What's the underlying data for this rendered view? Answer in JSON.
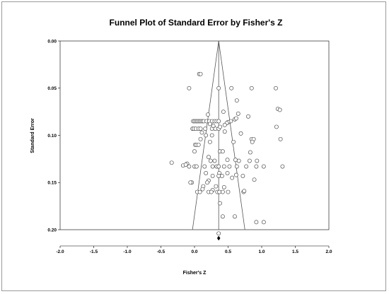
{
  "chart_data": {
    "type": "scatter",
    "title": "Funnel Plot of Standard Error by Fisher's Z",
    "xlabel": "Fisher's Z",
    "ylabel": "Standard Error",
    "xlim": [
      -2.0,
      2.0
    ],
    "ylim": [
      0.0,
      0.2
    ],
    "y_inverted": true,
    "x_ticks": [
      "-2.0",
      "-1.5",
      "-1.0",
      "-0.5",
      "0.0",
      "0.5",
      "1.0",
      "1.5",
      "2.0"
    ],
    "y_ticks": [
      "0.00",
      "0.05",
      "0.10",
      "0.15",
      "0.20"
    ],
    "summary_effect": 0.36,
    "funnel": {
      "apex": [
        0.36,
        0.0
      ],
      "lower_left": [
        -0.03,
        0.2
      ],
      "lower_right": [
        0.75,
        0.2
      ]
    },
    "points": [
      {
        "x": -0.08,
        "y": 0.05
      },
      {
        "x": 0.07,
        "y": 0.035
      },
      {
        "x": 0.09,
        "y": 0.035
      },
      {
        "x": 0.36,
        "y": 0.05
      },
      {
        "x": 0.55,
        "y": 0.05
      },
      {
        "x": 0.85,
        "y": 0.05
      },
      {
        "x": 1.21,
        "y": 0.05
      },
      {
        "x": 0.63,
        "y": 0.063
      },
      {
        "x": 1.24,
        "y": 0.072
      },
      {
        "x": 1.27,
        "y": 0.073
      },
      {
        "x": 0.43,
        "y": 0.075
      },
      {
        "x": 0.2,
        "y": 0.078
      },
      {
        "x": 0.65,
        "y": 0.077
      },
      {
        "x": 0.8,
        "y": 0.08
      },
      {
        "x": -0.02,
        "y": 0.085
      },
      {
        "x": 0.0,
        "y": 0.085
      },
      {
        "x": 0.02,
        "y": 0.085
      },
      {
        "x": 0.04,
        "y": 0.085
      },
      {
        "x": 0.06,
        "y": 0.085
      },
      {
        "x": 0.08,
        "y": 0.085
      },
      {
        "x": 0.1,
        "y": 0.085
      },
      {
        "x": 0.12,
        "y": 0.085
      },
      {
        "x": 0.14,
        "y": 0.085
      },
      {
        "x": 0.18,
        "y": 0.085
      },
      {
        "x": 0.22,
        "y": 0.085
      },
      {
        "x": 0.26,
        "y": 0.085
      },
      {
        "x": 0.3,
        "y": 0.085
      },
      {
        "x": 0.33,
        "y": 0.085
      },
      {
        "x": 0.36,
        "y": 0.085
      },
      {
        "x": 0.6,
        "y": 0.083
      },
      {
        "x": 0.62,
        "y": 0.082
      },
      {
        "x": 0.54,
        "y": 0.085
      },
      {
        "x": 0.5,
        "y": 0.086
      },
      {
        "x": 0.48,
        "y": 0.087
      },
      {
        "x": 0.45,
        "y": 0.089
      },
      {
        "x": 0.23,
        "y": 0.088
      },
      {
        "x": -0.03,
        "y": 0.093
      },
      {
        "x": -0.01,
        "y": 0.093
      },
      {
        "x": 0.02,
        "y": 0.093
      },
      {
        "x": 0.06,
        "y": 0.093
      },
      {
        "x": 0.09,
        "y": 0.093
      },
      {
        "x": 0.16,
        "y": 0.093
      },
      {
        "x": 0.26,
        "y": 0.093
      },
      {
        "x": 0.31,
        "y": 0.093
      },
      {
        "x": 0.36,
        "y": 0.093
      },
      {
        "x": 0.38,
        "y": 0.091
      },
      {
        "x": 0.28,
        "y": 0.09
      },
      {
        "x": 0.11,
        "y": 0.097
      },
      {
        "x": 0.17,
        "y": 0.1
      },
      {
        "x": 0.26,
        "y": 0.1
      },
      {
        "x": 0.45,
        "y": 0.096
      },
      {
        "x": 0.69,
        "y": 0.098
      },
      {
        "x": 1.22,
        "y": 0.091
      },
      {
        "x": 0.09,
        "y": 0.104
      },
      {
        "x": 0.85,
        "y": 0.104
      },
      {
        "x": 0.88,
        "y": 0.104
      },
      {
        "x": 0.86,
        "y": 0.107
      },
      {
        "x": 1.28,
        "y": 0.104
      },
      {
        "x": 0.01,
        "y": 0.11
      },
      {
        "x": 0.03,
        "y": 0.11
      },
      {
        "x": 0.06,
        "y": 0.11
      },
      {
        "x": 0.23,
        "y": 0.107
      },
      {
        "x": 0.58,
        "y": 0.107
      },
      {
        "x": 0.0,
        "y": 0.117
      },
      {
        "x": 0.38,
        "y": 0.117
      },
      {
        "x": 0.42,
        "y": 0.117
      },
      {
        "x": 0.83,
        "y": 0.118
      },
      {
        "x": 0.21,
        "y": 0.123
      },
      {
        "x": 0.24,
        "y": 0.127
      },
      {
        "x": 0.3,
        "y": 0.127
      },
      {
        "x": 0.49,
        "y": 0.126
      },
      {
        "x": 0.61,
        "y": 0.126
      },
      {
        "x": 0.66,
        "y": 0.127
      },
      {
        "x": 0.82,
        "y": 0.127
      },
      {
        "x": 0.93,
        "y": 0.127
      },
      {
        "x": -0.34,
        "y": 0.129
      },
      {
        "x": -0.11,
        "y": 0.13
      },
      {
        "x": -0.17,
        "y": 0.132
      },
      {
        "x": -0.13,
        "y": 0.131
      },
      {
        "x": -0.08,
        "y": 0.133
      },
      {
        "x": 0.0,
        "y": 0.133
      },
      {
        "x": 0.03,
        "y": 0.133
      },
      {
        "x": 0.15,
        "y": 0.133
      },
      {
        "x": 0.27,
        "y": 0.133
      },
      {
        "x": 0.33,
        "y": 0.133
      },
      {
        "x": 0.36,
        "y": 0.133
      },
      {
        "x": 0.44,
        "y": 0.133
      },
      {
        "x": 0.52,
        "y": 0.133
      },
      {
        "x": 0.63,
        "y": 0.133
      },
      {
        "x": 0.77,
        "y": 0.133
      },
      {
        "x": 0.92,
        "y": 0.133
      },
      {
        "x": 1.03,
        "y": 0.133
      },
      {
        "x": 1.31,
        "y": 0.133
      },
      {
        "x": 0.17,
        "y": 0.14
      },
      {
        "x": 0.37,
        "y": 0.14
      },
      {
        "x": 0.49,
        "y": 0.14
      },
      {
        "x": 0.62,
        "y": 0.142
      },
      {
        "x": 0.72,
        "y": 0.143
      },
      {
        "x": 0.36,
        "y": 0.143
      },
      {
        "x": 0.41,
        "y": 0.143
      },
      {
        "x": 0.27,
        "y": 0.143
      },
      {
        "x": 0.56,
        "y": 0.145
      },
      {
        "x": 0.89,
        "y": 0.147
      },
      {
        "x": 0.21,
        "y": 0.148
      },
      {
        "x": -0.04,
        "y": 0.15
      },
      {
        "x": -0.06,
        "y": 0.15
      },
      {
        "x": 0.19,
        "y": 0.15
      },
      {
        "x": 0.13,
        "y": 0.154
      },
      {
        "x": 0.32,
        "y": 0.154
      },
      {
        "x": 0.44,
        "y": 0.155
      },
      {
        "x": 0.12,
        "y": 0.157
      },
      {
        "x": 0.27,
        "y": 0.158
      },
      {
        "x": 0.04,
        "y": 0.16
      },
      {
        "x": 0.08,
        "y": 0.16
      },
      {
        "x": 0.21,
        "y": 0.16
      },
      {
        "x": 0.25,
        "y": 0.16
      },
      {
        "x": 0.34,
        "y": 0.16
      },
      {
        "x": 0.37,
        "y": 0.16
      },
      {
        "x": 0.42,
        "y": 0.16
      },
      {
        "x": 0.5,
        "y": 0.16
      },
      {
        "x": 0.73,
        "y": 0.16
      },
      {
        "x": 0.74,
        "y": 0.159
      },
      {
        "x": 0.38,
        "y": 0.172
      },
      {
        "x": 0.42,
        "y": 0.186
      },
      {
        "x": 0.6,
        "y": 0.186
      },
      {
        "x": 0.92,
        "y": 0.192
      },
      {
        "x": 1.03,
        "y": 0.192
      },
      {
        "x": 0.36,
        "y": 0.204
      }
    ]
  }
}
